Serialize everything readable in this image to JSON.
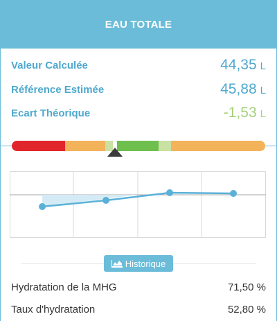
{
  "header": {
    "title": "EAU TOTALE"
  },
  "metrics": [
    {
      "label": "Valeur Calculée",
      "value": "44,35",
      "unit": "L"
    },
    {
      "label": "Référence Estimée",
      "value": "45,88",
      "unit": "L"
    },
    {
      "label": "Ecart Théorique",
      "value": "-1,53",
      "unit": "L"
    }
  ],
  "colors": {
    "accent": "#6bbcd9",
    "label_blue": "#4fa9cf",
    "delta_green": "#a6d07b",
    "scale_red": "#e0262b",
    "scale_orange": "#f3b35a",
    "scale_light_green": "#c9e2a3",
    "scale_green": "#6fbf4e"
  },
  "scale": {
    "segments": [
      "red",
      "orange",
      "light-green",
      "green",
      "light-green",
      "orange"
    ],
    "marker_icon": "triangle-up-icon"
  },
  "chart_data": {
    "type": "line",
    "series": [
      {
        "values": [
          44.0,
          45.1,
          46.4,
          46.2
        ]
      }
    ],
    "reference_value": 46.0
  },
  "history_button": {
    "label": "Historique",
    "icon": "area-chart-icon"
  },
  "details": [
    {
      "label": "Hydratation de la MHG",
      "value": "71,50 %"
    },
    {
      "label": "Taux d'hydratation",
      "value": "52,80 %"
    }
  ]
}
